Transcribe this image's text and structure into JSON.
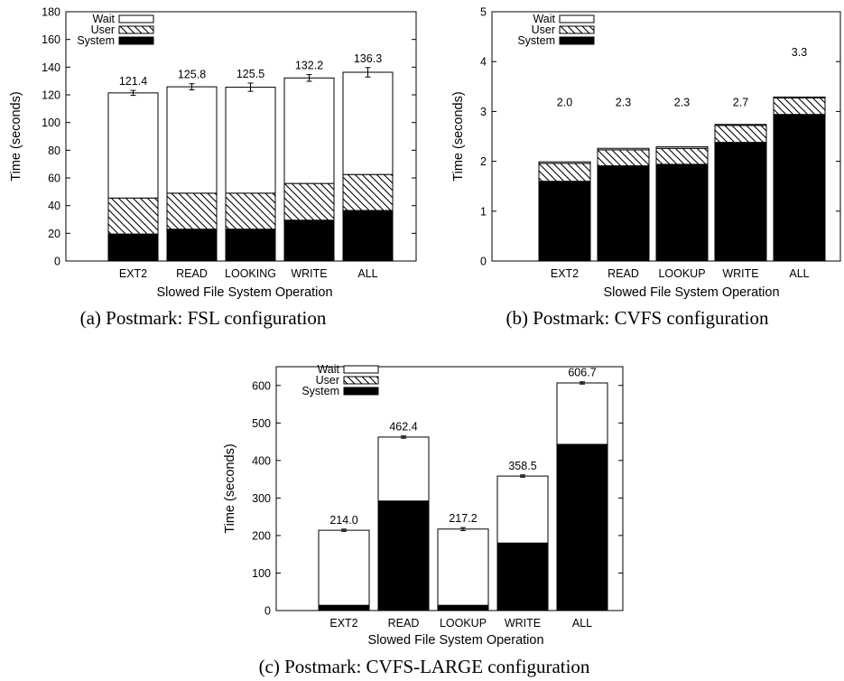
{
  "figures": [
    {
      "caption": "(a) Postmark: FSL configuration"
    },
    {
      "caption": "(b) Postmark: CVFS configuration"
    },
    {
      "caption": "(c) Postmark: CVFS-LARGE configuration"
    }
  ],
  "chart_data": [
    {
      "type": "bar",
      "stacked": true,
      "title": "",
      "xlabel": "Slowed File System Operation",
      "ylabel": "Time (seconds)",
      "categories": [
        "EXT2",
        "READ",
        "LOOKING",
        "WRITE",
        "ALL"
      ],
      "ylim": [
        0,
        180
      ],
      "yticks": [
        0,
        20,
        40,
        60,
        80,
        100,
        120,
        140,
        160,
        180
      ],
      "legend": {
        "placement": "top-left",
        "entries": [
          "Wait",
          "User",
          "System"
        ]
      },
      "series": [
        {
          "name": "System",
          "values": [
            19.5,
            23.0,
            23.0,
            29.5,
            36.5
          ]
        },
        {
          "name": "User",
          "values": [
            26.0,
            26.0,
            26.0,
            26.5,
            26.0
          ]
        },
        {
          "name": "Wait",
          "values": [
            75.9,
            76.8,
            76.5,
            76.2,
            73.8
          ]
        }
      ],
      "totals": [
        121.4,
        125.8,
        125.5,
        132.2,
        136.3
      ],
      "total_labels": [
        "121.4",
        "125.8",
        "125.5",
        "132.2",
        "136.3"
      ],
      "error": [
        1.8,
        2.2,
        3.0,
        2.4,
        3.4
      ]
    },
    {
      "type": "bar",
      "stacked": true,
      "title": "",
      "xlabel": "Slowed File System Operation",
      "ylabel": "Time (seconds)",
      "categories": [
        "EXT2",
        "READ",
        "LOOKUP",
        "WRITE",
        "ALL"
      ],
      "ylim": [
        0,
        5
      ],
      "yticks": [
        0,
        1,
        2,
        3,
        4,
        5
      ],
      "legend": {
        "placement": "top-left",
        "entries": [
          "Wait",
          "User",
          "System"
        ]
      },
      "series": [
        {
          "name": "System",
          "values": [
            1.6,
            1.91,
            1.94,
            2.38,
            2.94
          ]
        },
        {
          "name": "User",
          "values": [
            0.36,
            0.32,
            0.32,
            0.34,
            0.33
          ]
        },
        {
          "name": "Wait",
          "values": [
            0.03,
            0.03,
            0.03,
            0.02,
            0.02
          ]
        }
      ],
      "totals": [
        1.99,
        2.26,
        2.29,
        2.74,
        3.29
      ],
      "total_labels": [
        "2.0",
        "2.3",
        "2.3",
        "2.7",
        "3.3"
      ],
      "label_y": [
        3.0,
        3.0,
        3.0,
        3.0,
        4.0
      ],
      "error": [
        0,
        0,
        0,
        0,
        0
      ]
    },
    {
      "type": "bar",
      "stacked": true,
      "title": "",
      "xlabel": "Slowed File System Operation",
      "ylabel": "Time (seconds)",
      "categories": [
        "EXT2",
        "READ",
        "LOOKUP",
        "WRITE",
        "ALL"
      ],
      "ylim": [
        0,
        650
      ],
      "yticks": [
        0,
        100,
        200,
        300,
        400,
        500,
        600
      ],
      "legend": {
        "placement": "top-left",
        "entries": [
          "Wait",
          "User",
          "System"
        ]
      },
      "series": [
        {
          "name": "System",
          "values": [
            14,
            292,
            14,
            180,
            443
          ]
        },
        {
          "name": "User",
          "values": [
            0,
            0,
            0,
            0,
            0
          ]
        },
        {
          "name": "Wait",
          "values": [
            200.0,
            170.4,
            203.2,
            178.5,
            163.7
          ]
        }
      ],
      "totals": [
        214.0,
        462.4,
        217.2,
        358.5,
        606.7
      ],
      "total_labels": [
        "214.0",
        "462.4",
        "217.2",
        "358.5",
        "606.7"
      ],
      "error": [
        3,
        3,
        4,
        3,
        3
      ]
    }
  ]
}
